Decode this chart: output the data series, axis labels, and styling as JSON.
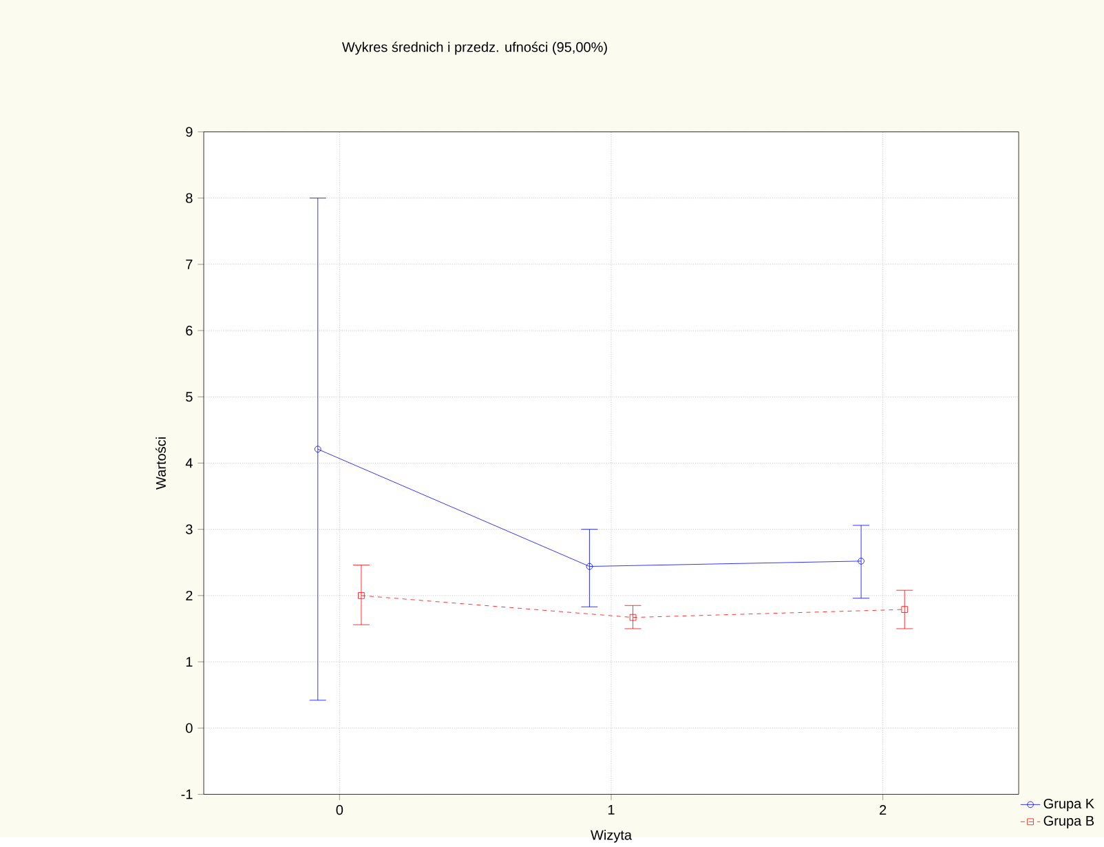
{
  "chart_data": {
    "type": "line",
    "title": "Wykres średnich i przedz. ufności (95,00%)",
    "xlabel": "Wizyta",
    "ylabel": "Wartości",
    "xlim": [
      -0.5,
      2.5
    ],
    "xticks": [
      0,
      1,
      2
    ],
    "ylim": [
      -1,
      9
    ],
    "yticks": [
      -1,
      0,
      1,
      2,
      3,
      4,
      5,
      6,
      7,
      8,
      9
    ],
    "grid": true,
    "legend": "bottom right",
    "series": [
      {
        "name": "Grupa K",
        "color": "#0000ff",
        "x": [
          -0.08,
          0.92,
          1.92
        ],
        "values": [
          4.21,
          2.44,
          2.52
        ],
        "errors": [
          [
            0.42,
            8.0
          ],
          [
            1.83,
            3.0
          ],
          [
            1.96,
            3.06
          ]
        ],
        "marker": "circle",
        "line_style": "solid"
      },
      {
        "name": "Grupa B",
        "color": "#ff0000",
        "x": [
          0.08,
          1.08,
          2.08
        ],
        "values": [
          2.0,
          1.67,
          1.79
        ],
        "errors": [
          [
            1.56,
            2.46
          ],
          [
            1.5,
            1.85
          ],
          [
            1.5,
            2.08
          ]
        ],
        "marker": "square",
        "line_style": "dashed"
      }
    ]
  }
}
